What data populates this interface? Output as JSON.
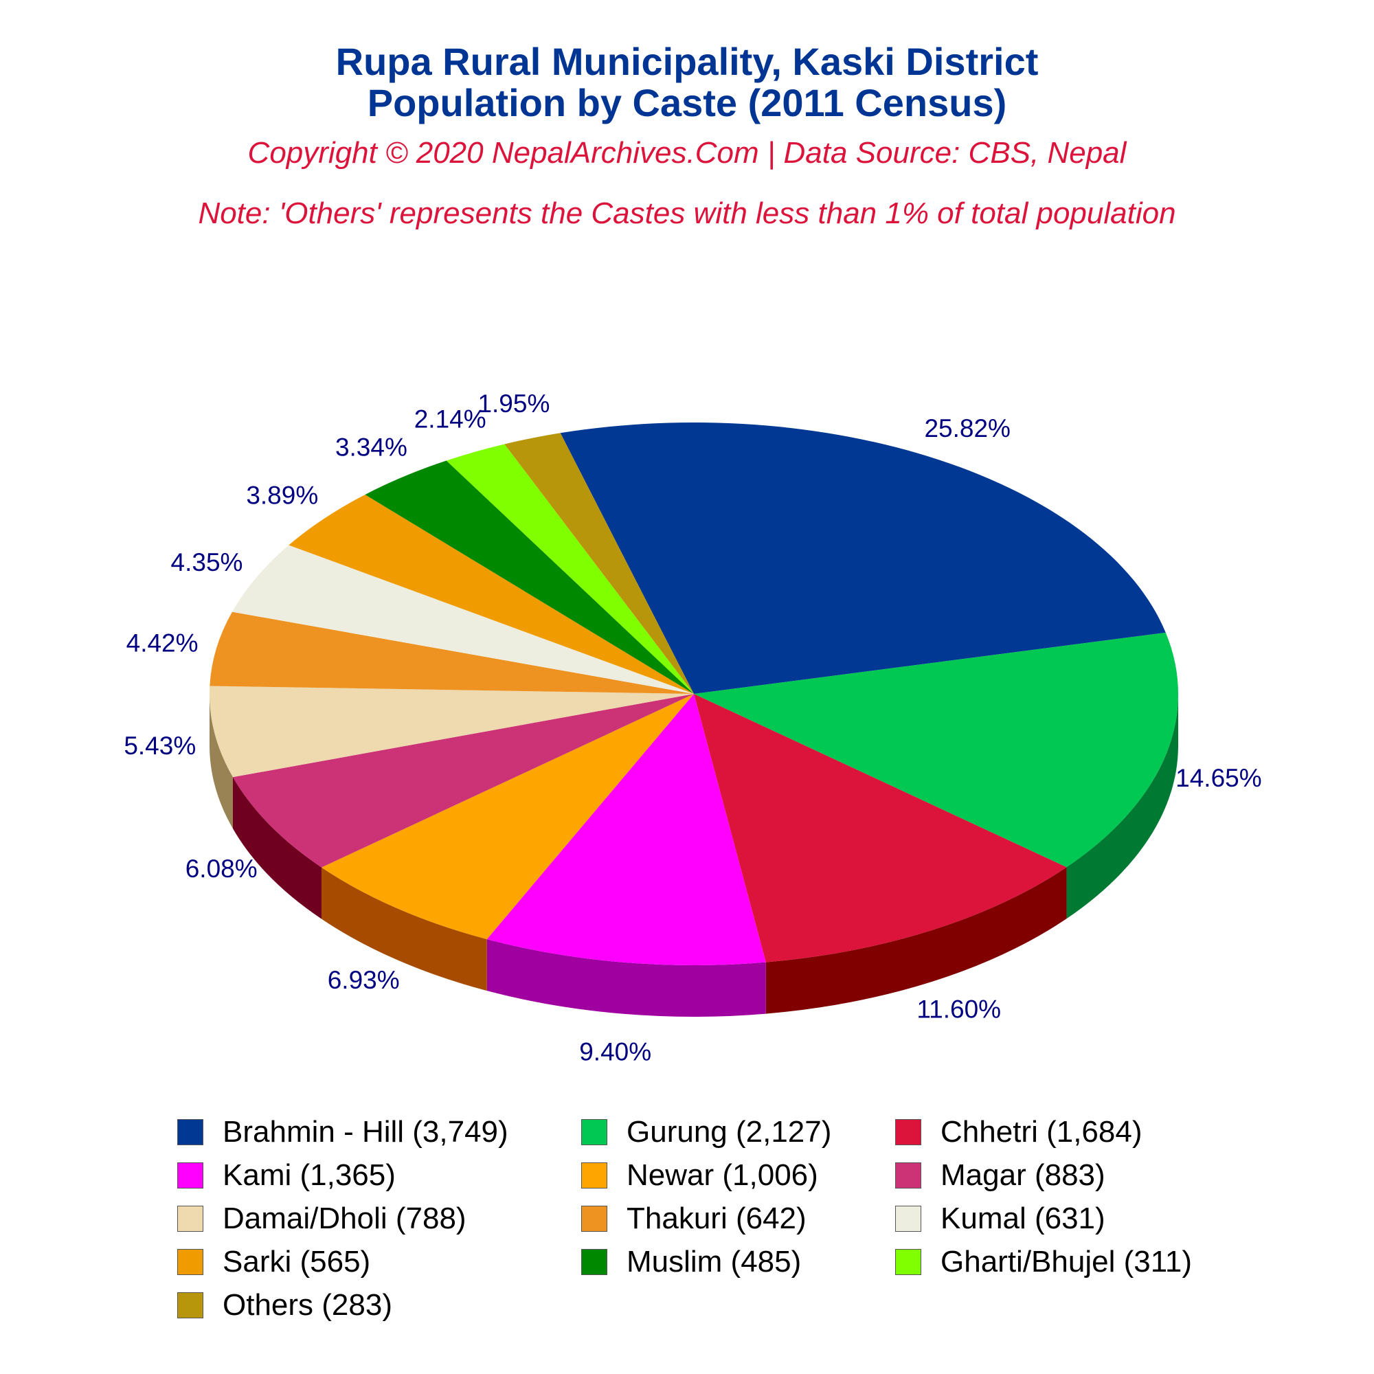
{
  "header": {
    "title_line1": "Rupa Rural Municipality, Kaski District",
    "title_line2": "Population by Caste (2011 Census)",
    "subtitle": "Copyright © 2020 NepalArchives.Com | Data Source: CBS, Nepal",
    "note": "Note: 'Others' represents the Castes with less than 1% of total population"
  },
  "chart_data": {
    "type": "pie",
    "style": "3d",
    "legend_position": "bottom",
    "slices": [
      {
        "label": "Brahmin - Hill (3,749)",
        "value": 3749,
        "percent_label": "25.82%",
        "color": "#003893",
        "side_color": "#001f52"
      },
      {
        "label": "Gurung (2,127)",
        "value": 2127,
        "percent_label": "14.65%",
        "color": "#00c853",
        "side_color": "#007a33"
      },
      {
        "label": "Chhetri (1,684)",
        "value": 1684,
        "percent_label": "11.60%",
        "color": "#dc143c",
        "side_color": "#800000"
      },
      {
        "label": "Kami (1,365)",
        "value": 1365,
        "percent_label": "9.40%",
        "color": "#ff00ff",
        "side_color": "#a000a0"
      },
      {
        "label": "Newar (1,006)",
        "value": 1006,
        "percent_label": "6.93%",
        "color": "#ffa500",
        "side_color": "#a64b00"
      },
      {
        "label": "Magar (883)",
        "value": 883,
        "percent_label": "6.08%",
        "color": "#cc3377",
        "side_color": "#700020"
      },
      {
        "label": "Damai/Dholi (788)",
        "value": 788,
        "percent_label": "5.43%",
        "color": "#efd9ae",
        "side_color": "#998355"
      },
      {
        "label": "Thakuri (642)",
        "value": 642,
        "percent_label": "4.42%",
        "color": "#ee9322",
        "side_color": "#933300"
      },
      {
        "label": "Kumal (631)",
        "value": 631,
        "percent_label": "4.35%",
        "color": "#eeeee0",
        "side_color": "#99998a"
      },
      {
        "label": "Sarki (565)",
        "value": 565,
        "percent_label": "3.89%",
        "color": "#f09c00",
        "side_color": "#8a5800"
      },
      {
        "label": "Muslim (485)",
        "value": 485,
        "percent_label": "3.34%",
        "color": "#008800",
        "side_color": "#004d00"
      },
      {
        "label": "Gharti/Bhujel (311)",
        "value": 311,
        "percent_label": "2.14%",
        "color": "#80ff00",
        "side_color": "#4c9900"
      },
      {
        "label": "Others (283)",
        "value": 283,
        "percent_label": "1.95%",
        "color": "#b8960c",
        "side_color": "#6e5a07"
      }
    ]
  }
}
